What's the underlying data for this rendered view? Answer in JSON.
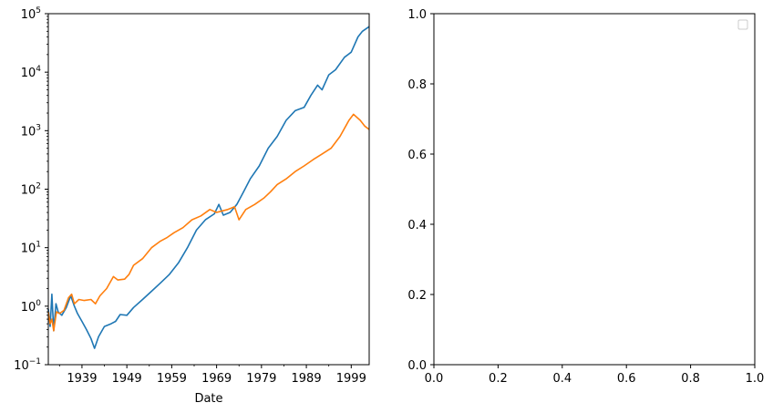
{
  "chart_data": [
    {
      "type": "line",
      "title": "",
      "xlabel": "Date",
      "ylabel": "",
      "yscale": "log",
      "xlim": [
        "1932-01",
        "2003-06"
      ],
      "ylim": [
        0.1,
        100000
      ],
      "x_tick_labels": [
        "1939",
        "1949",
        "1959",
        "1969",
        "1979",
        "1989",
        "1999"
      ],
      "y_tick_labels": [
        {
          "base": "10",
          "exp": "−1"
        },
        {
          "base": "10",
          "exp": "0"
        },
        {
          "base": "10",
          "exp": "1"
        },
        {
          "base": "10",
          "exp": "2"
        },
        {
          "base": "10",
          "exp": "3"
        },
        {
          "base": "10",
          "exp": "4"
        },
        {
          "base": "10",
          "exp": "5"
        }
      ],
      "grid": false,
      "legend": false,
      "series": [
        {
          "color": "#1f77b4",
          "points": [
            [
              1932.0,
              0.9
            ],
            [
              1932.4,
              0.45
            ],
            [
              1932.8,
              1.6
            ],
            [
              1933.2,
              0.38
            ],
            [
              1933.7,
              1.1
            ],
            [
              1934.2,
              0.8
            ],
            [
              1935.0,
              0.7
            ],
            [
              1936.0,
              0.95
            ],
            [
              1937.0,
              1.5
            ],
            [
              1937.8,
              1.0
            ],
            [
              1938.5,
              0.75
            ],
            [
              1939.5,
              0.55
            ],
            [
              1940.5,
              0.4
            ],
            [
              1941.5,
              0.28
            ],
            [
              1942.3,
              0.19
            ],
            [
              1943.2,
              0.3
            ],
            [
              1944.5,
              0.45
            ],
            [
              1946.0,
              0.5
            ],
            [
              1947.0,
              0.55
            ],
            [
              1948.0,
              0.72
            ],
            [
              1949.5,
              0.7
            ],
            [
              1951.0,
              0.95
            ],
            [
              1953.0,
              1.3
            ],
            [
              1955.0,
              1.8
            ],
            [
              1957.0,
              2.5
            ],
            [
              1959.0,
              3.5
            ],
            [
              1961.0,
              5.5
            ],
            [
              1963.0,
              10
            ],
            [
              1965.0,
              20
            ],
            [
              1967.0,
              30
            ],
            [
              1969.0,
              38
            ],
            [
              1970.0,
              55
            ],
            [
              1971.0,
              36
            ],
            [
              1972.5,
              40
            ],
            [
              1974.0,
              55
            ],
            [
              1975.5,
              90
            ],
            [
              1977.0,
              150
            ],
            [
              1979.0,
              250
            ],
            [
              1981.0,
              500
            ],
            [
              1983.0,
              800
            ],
            [
              1985.0,
              1500
            ],
            [
              1987.0,
              2200
            ],
            [
              1989.0,
              2500
            ],
            [
              1990.5,
              4000
            ],
            [
              1992.0,
              6000
            ],
            [
              1993.0,
              5000
            ],
            [
              1994.5,
              9000
            ],
            [
              1996.0,
              11000
            ],
            [
              1998.0,
              18000
            ],
            [
              1999.5,
              22000
            ],
            [
              2001.0,
              40000
            ],
            [
              2002.0,
              50000
            ],
            [
              2003.5,
              60000
            ]
          ]
        },
        {
          "color": "#ff7f0e",
          "points": [
            [
              1932.0,
              0.8
            ],
            [
              1932.4,
              0.5
            ],
            [
              1932.8,
              0.6
            ],
            [
              1933.2,
              0.38
            ],
            [
              1933.8,
              0.8
            ],
            [
              1934.5,
              0.75
            ],
            [
              1935.5,
              0.85
            ],
            [
              1936.5,
              1.4
            ],
            [
              1937.2,
              1.6
            ],
            [
              1937.8,
              1.1
            ],
            [
              1938.8,
              1.3
            ],
            [
              1940.0,
              1.25
            ],
            [
              1941.5,
              1.3
            ],
            [
              1942.5,
              1.1
            ],
            [
              1943.5,
              1.5
            ],
            [
              1945.0,
              2.0
            ],
            [
              1946.5,
              3.2
            ],
            [
              1947.5,
              2.8
            ],
            [
              1949.0,
              2.9
            ],
            [
              1950.0,
              3.5
            ],
            [
              1951.0,
              5.0
            ],
            [
              1953.0,
              6.5
            ],
            [
              1955.0,
              10
            ],
            [
              1957.0,
              13
            ],
            [
              1958.5,
              15
            ],
            [
              1960.0,
              18
            ],
            [
              1962.0,
              22
            ],
            [
              1964.0,
              30
            ],
            [
              1966.0,
              35
            ],
            [
              1968.0,
              45
            ],
            [
              1969.5,
              40
            ],
            [
              1970.5,
              42
            ],
            [
              1972.0,
              45
            ],
            [
              1973.5,
              50
            ],
            [
              1974.5,
              30
            ],
            [
              1976.0,
              45
            ],
            [
              1978.0,
              55
            ],
            [
              1980.0,
              70
            ],
            [
              1981.5,
              90
            ],
            [
              1983.0,
              120
            ],
            [
              1985.0,
              150
            ],
            [
              1987.0,
              200
            ],
            [
              1989.0,
              250
            ],
            [
              1991.0,
              320
            ],
            [
              1993.0,
              400
            ],
            [
              1995.0,
              500
            ],
            [
              1997.0,
              800
            ],
            [
              1999.0,
              1500
            ],
            [
              2000.0,
              1900
            ],
            [
              2001.5,
              1500
            ],
            [
              2002.5,
              1200
            ],
            [
              2003.5,
              1050
            ]
          ]
        }
      ]
    },
    {
      "type": "line",
      "title": "",
      "xlabel": "",
      "ylabel": "",
      "xlim": [
        0,
        1
      ],
      "ylim": [
        0,
        1
      ],
      "x_tick_labels": [
        "0.0",
        "0.2",
        "0.4",
        "0.6",
        "0.8",
        "1.0"
      ],
      "y_tick_labels": [
        "0.0",
        "0.2",
        "0.4",
        "0.6",
        "0.8",
        "1.0"
      ],
      "grid": false,
      "legend": true,
      "legend_position": "top-right",
      "series": []
    }
  ]
}
